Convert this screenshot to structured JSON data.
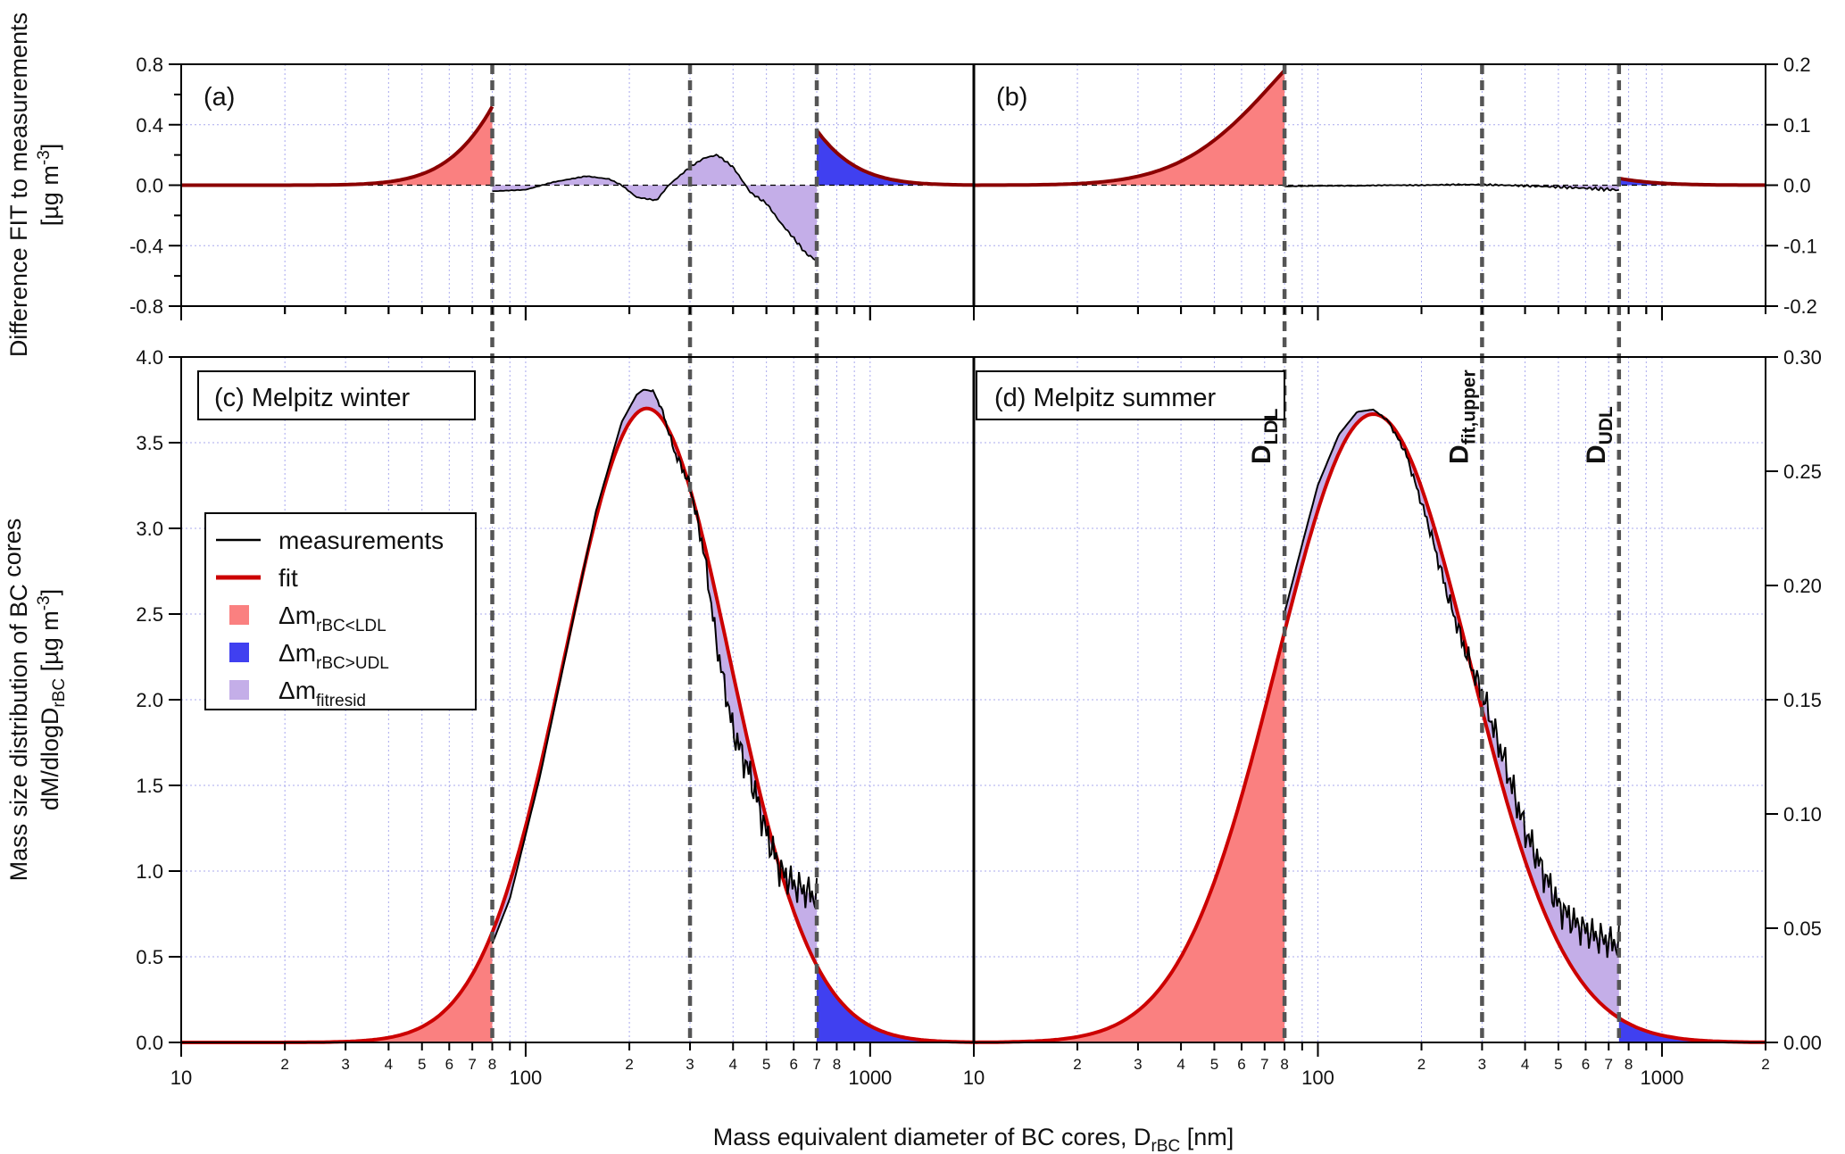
{
  "chart_data": {
    "type": "area",
    "x_axis": {
      "label": "Mass equivalent diameter of BC cores, D",
      "label_sub": "rBC",
      "label_unit": " [nm]",
      "scale": "log",
      "range": [
        10,
        2000
      ],
      "major_ticks": [
        "10",
        "100",
        "1000",
        "10",
        "100",
        "1000"
      ],
      "minor_labels": [
        "2",
        "3",
        "4",
        "5",
        "6",
        "7",
        "8"
      ]
    },
    "y_axis_top": {
      "label_line1": "Difference FIT to measurements",
      "label_line2": "[µg m",
      "label_line2_sup": "-3",
      "label_line2_end": "]",
      "left_range": [
        -0.8,
        0.8
      ],
      "left_ticks": [
        "-0.8",
        "-0.4",
        "0.0",
        "0.4",
        "0.8"
      ],
      "right_range": [
        -0.2,
        0.2
      ],
      "right_ticks": [
        "-0.2",
        "-0.1",
        "0.0",
        "0.1",
        "0.2"
      ]
    },
    "y_axis_bottom": {
      "label_line1_a": "Mass size distribution of BC",
      "label_line1_sub": "",
      "label_line1_b": " cores",
      "label_line2_a": "dM/dlogD",
      "label_line2_sub": "rBC",
      "label_line2_b": " [µg m",
      "label_line2_sup": "-3",
      "label_line2_c": "]",
      "left_range": [
        0,
        4.0
      ],
      "left_ticks": [
        "0.0",
        "0.5",
        "1.0",
        "1.5",
        "2.0",
        "2.5",
        "3.0",
        "3.5",
        "4.0"
      ],
      "right_range": [
        0,
        0.3
      ],
      "right_ticks": [
        "0.00",
        "0.05",
        "0.10",
        "0.15",
        "0.20",
        "0.25",
        "0.30"
      ]
    },
    "panels": [
      {
        "id": "a",
        "label": "(a)"
      },
      {
        "id": "b",
        "label": "(b)"
      },
      {
        "id": "c",
        "label": "(c) Melpitz winter"
      },
      {
        "id": "d",
        "label": "(d) Melpitz summer"
      }
    ],
    "winter": {
      "fit": {
        "amplitude": 3.7,
        "mode_nm": 225,
        "sigma_log10": 0.24
      },
      "lower_detection_limit_nm": 80,
      "upper_fit_limit_nm": 300,
      "upper_detection_limit_nm": 700,
      "measurements": {
        "x": [
          78,
          90,
          110,
          130,
          160,
          190,
          210,
          220,
          235,
          250,
          270,
          300,
          330,
          360,
          400,
          450,
          500,
          550,
          600,
          650,
          700
        ],
        "y": [
          0.52,
          0.84,
          1.55,
          2.24,
          3.1,
          3.62,
          3.78,
          3.81,
          3.8,
          3.68,
          3.45,
          3.25,
          2.85,
          2.3,
          1.82,
          1.55,
          1.22,
          1.0,
          0.92,
          0.88,
          0.85
        ]
      },
      "residual": {
        "x": [
          80,
          100,
          120,
          150,
          175,
          190,
          210,
          240,
          260,
          300,
          330,
          360,
          400,
          450,
          500,
          550,
          600,
          650,
          700
        ],
        "y": [
          -0.04,
          -0.03,
          0.02,
          0.06,
          0.04,
          0.0,
          -0.08,
          -0.1,
          0.0,
          0.12,
          0.18,
          0.2,
          0.12,
          -0.05,
          -0.12,
          -0.25,
          -0.35,
          -0.45,
          -0.5
        ]
      }
    },
    "summer": {
      "fit": {
        "amplitude": 0.275,
        "mode_nm": 145,
        "sigma_log10": 0.28
      },
      "lower_detection_limit_nm": 80,
      "upper_fit_limit_nm": 300,
      "upper_detection_limit_nm": 750,
      "measurements": {
        "x": [
          80,
          90,
          100,
          115,
          130,
          145,
          160,
          180,
          210,
          240,
          270,
          300,
          350,
          400,
          450,
          500,
          550,
          600,
          650,
          700,
          750
        ],
        "y": [
          0.188,
          0.218,
          0.244,
          0.266,
          0.276,
          0.277,
          0.272,
          0.258,
          0.226,
          0.194,
          0.17,
          0.153,
          0.122,
          0.093,
          0.075,
          0.06,
          0.053,
          0.049,
          0.046,
          0.044,
          0.043
        ]
      },
      "residual": {
        "x": [
          80,
          100,
          130,
          160,
          200,
          250,
          300,
          350,
          400,
          450,
          500,
          550,
          600,
          650,
          700,
          750
        ],
        "y": [
          -0.002,
          -0.001,
          -0.001,
          0.0,
          0.0,
          0.001,
          0.001,
          0.0,
          -0.001,
          -0.002,
          -0.003,
          -0.004,
          -0.005,
          -0.006,
          -0.007,
          -0.008
        ]
      }
    },
    "vertical_labels": [
      {
        "main": "D",
        "sub": "LDL"
      },
      {
        "main": "D",
        "sub": "fit,upper"
      },
      {
        "main": "D",
        "sub": "UDL"
      }
    ],
    "legend": {
      "placement": "left",
      "items": [
        {
          "type": "line",
          "color": "#000000",
          "label": "measurements",
          "sub": ""
        },
        {
          "type": "line",
          "color": "#cc0000",
          "label": "fit",
          "sub": ""
        },
        {
          "type": "box",
          "color": "#fa8080",
          "label": "Δm",
          "sub": "rBC<LDL"
        },
        {
          "type": "box",
          "color": "#4040f0",
          "label": "Δm",
          "sub": "rBC>UDL"
        },
        {
          "type": "box",
          "color": "#c4aee8",
          "label": "Δm",
          "sub": "fitresid"
        }
      ]
    },
    "colors": {
      "measurement": "#000000",
      "fit_top": "#8b0000",
      "fit_bottom": "#cc0000",
      "below_ldl": "#fa8080",
      "above_udl": "#4040f0",
      "fit_residual": "#c4aee8",
      "grid": "#a8a8ee",
      "limit_line": "#555555"
    },
    "grid": true
  }
}
